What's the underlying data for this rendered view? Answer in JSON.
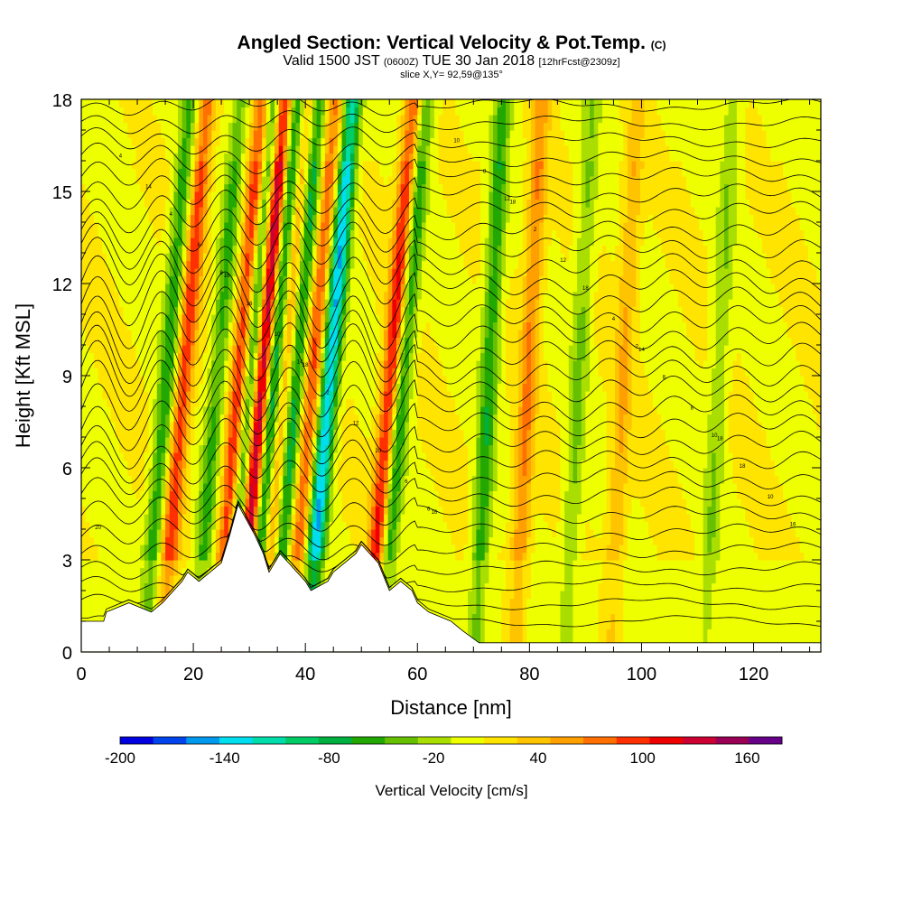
{
  "header": {
    "title_main": "Angled Section: Vertical Velocity & Pot.Temp.",
    "title_mark": "(C)",
    "valid_pre": "Valid 1500 JST",
    "valid_zulu": "(0600Z)",
    "valid_date": "TUE 30 Jan 2018",
    "valid_fcst": "[12hrFcst@2309z]",
    "slice": "slice X,Y= 92,59@135°"
  },
  "chart_data": {
    "type": "heatmap",
    "title": "Angled Section: Vertical Velocity & Pot.Temp.",
    "xlabel": "Distance [nm]",
    "ylabel": "Height [Kft MSL]",
    "xlim": [
      0,
      132
    ],
    "ylim": [
      0,
      18
    ],
    "x_ticks": [
      0,
      20,
      40,
      60,
      80,
      100,
      120
    ],
    "y_ticks": [
      0,
      3,
      6,
      9,
      12,
      15,
      18
    ],
    "colorbar": {
      "label": "Vertical Velocity [cm/s]",
      "range": [
        -200,
        180
      ],
      "tick_labels": [
        -200,
        -140,
        -80,
        -20,
        40,
        100,
        160
      ],
      "colors": [
        "#0000e0",
        "#0044ee",
        "#0099ee",
        "#00ddee",
        "#00ddaa",
        "#00cc66",
        "#00b040",
        "#22a800",
        "#66c000",
        "#aade00",
        "#eeff00",
        "#ffe400",
        "#ffc400",
        "#ffa000",
        "#ff7000",
        "#ff3000",
        "#ee0000",
        "#cc0033",
        "#990055",
        "#660088"
      ]
    },
    "updraft_bands": [
      {
        "x": 17,
        "w": 90
      },
      {
        "x": 27,
        "w": 100
      },
      {
        "x": 31,
        "w": 170
      },
      {
        "x": 35,
        "w": 70
      },
      {
        "x": 40,
        "w": 80
      },
      {
        "x": 54,
        "w": 110
      },
      {
        "x": 79,
        "w": 60
      },
      {
        "x": 96,
        "w": 40
      }
    ],
    "downdraft_bands": [
      {
        "x": 14,
        "w": -70
      },
      {
        "x": 23,
        "w": -60
      },
      {
        "x": 29,
        "w": -100
      },
      {
        "x": 33,
        "w": -120
      },
      {
        "x": 37,
        "w": -90
      },
      {
        "x": 43,
        "w": -150
      },
      {
        "x": 56,
        "w": -80
      },
      {
        "x": 72,
        "w": -70
      },
      {
        "x": 88,
        "w": -40
      },
      {
        "x": 113,
        "w": -35
      }
    ],
    "terrain": [
      {
        "x": 0,
        "h": 1.0
      },
      {
        "x": 4,
        "h": 1.0
      },
      {
        "x": 4.5,
        "h": 1.3
      },
      {
        "x": 8.5,
        "h": 1.6
      },
      {
        "x": 12.5,
        "h": 1.3
      },
      {
        "x": 14.5,
        "h": 1.6
      },
      {
        "x": 16.5,
        "h": 2.0
      },
      {
        "x": 18,
        "h": 2.3
      },
      {
        "x": 19,
        "h": 2.6
      },
      {
        "x": 21,
        "h": 2.3
      },
      {
        "x": 23,
        "h": 2.6
      },
      {
        "x": 25,
        "h": 2.9
      },
      {
        "x": 26.5,
        "h": 3.8
      },
      {
        "x": 28,
        "h": 4.8
      },
      {
        "x": 31,
        "h": 3.8
      },
      {
        "x": 32.5,
        "h": 3.2
      },
      {
        "x": 33.5,
        "h": 2.6
      },
      {
        "x": 34.5,
        "h": 2.9
      },
      {
        "x": 35.5,
        "h": 3.2
      },
      {
        "x": 37,
        "h": 2.9
      },
      {
        "x": 38.5,
        "h": 2.6
      },
      {
        "x": 40,
        "h": 2.3
      },
      {
        "x": 41,
        "h": 2.0
      },
      {
        "x": 44,
        "h": 2.3
      },
      {
        "x": 45,
        "h": 2.6
      },
      {
        "x": 47,
        "h": 2.9
      },
      {
        "x": 49,
        "h": 3.2
      },
      {
        "x": 50,
        "h": 3.5
      },
      {
        "x": 53,
        "h": 2.9
      },
      {
        "x": 55,
        "h": 2.0
      },
      {
        "x": 57,
        "h": 2.3
      },
      {
        "x": 59,
        "h": 2.0
      },
      {
        "x": 60,
        "h": 1.6
      },
      {
        "x": 62,
        "h": 1.3
      },
      {
        "x": 66,
        "h": 1.0
      },
      {
        "x": 68,
        "h": 0.7
      },
      {
        "x": 71,
        "h": 0.3
      },
      {
        "x": 132,
        "h": 0.3
      }
    ],
    "isentrope_labels": [
      "20",
      "18",
      "18",
      "18",
      "16",
      "16",
      "14",
      "14",
      "12",
      "12",
      "10",
      "10",
      "8",
      "8",
      "6",
      "6",
      "4",
      "4",
      "2",
      "2",
      "18",
      "16",
      "10",
      "8",
      "4",
      "20",
      "18",
      "16",
      "14",
      "12",
      "10",
      "8",
      "6",
      "-2"
    ],
    "legend": "none",
    "grid": false
  }
}
